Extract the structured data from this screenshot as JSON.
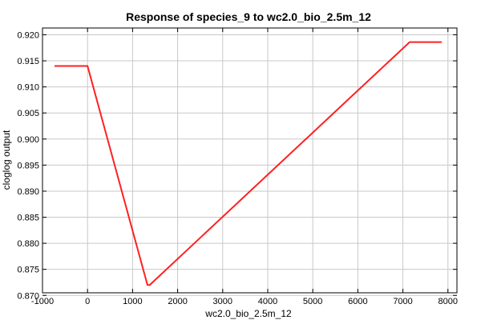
{
  "chart_data": {
    "type": "line",
    "title": "Response of species_9 to wc2.0_bio_2.5m_12",
    "xlabel": "wc2.0_bio_2.5m_12",
    "ylabel": "cloglog output",
    "xlim": [
      -1000,
      8200
    ],
    "ylim": [
      0.8705,
      0.9213
    ],
    "xticks": [
      -1000,
      0,
      1000,
      2000,
      3000,
      4000,
      5000,
      6000,
      7000,
      8000
    ],
    "xtick_labels": [
      "-1000",
      "0",
      "1000",
      "2000",
      "3000",
      "4000",
      "5000",
      "6000",
      "7000",
      "8000"
    ],
    "yticks": [
      0.87,
      0.875,
      0.88,
      0.885,
      0.89,
      0.895,
      0.9,
      0.905,
      0.91,
      0.915,
      0.92
    ],
    "ytick_labels": [
      "0.870",
      "0.875",
      "0.880",
      "0.885",
      "0.890",
      "0.895",
      "0.900",
      "0.905",
      "0.910",
      "0.915",
      "0.920"
    ],
    "grid": true,
    "series": [
      {
        "color": "#ff2020",
        "x": [
          -720,
          0,
          1330,
          1380,
          7150,
          7850
        ],
        "y": [
          0.914,
          0.914,
          0.872,
          0.872,
          0.9186,
          0.9186
        ]
      }
    ]
  }
}
